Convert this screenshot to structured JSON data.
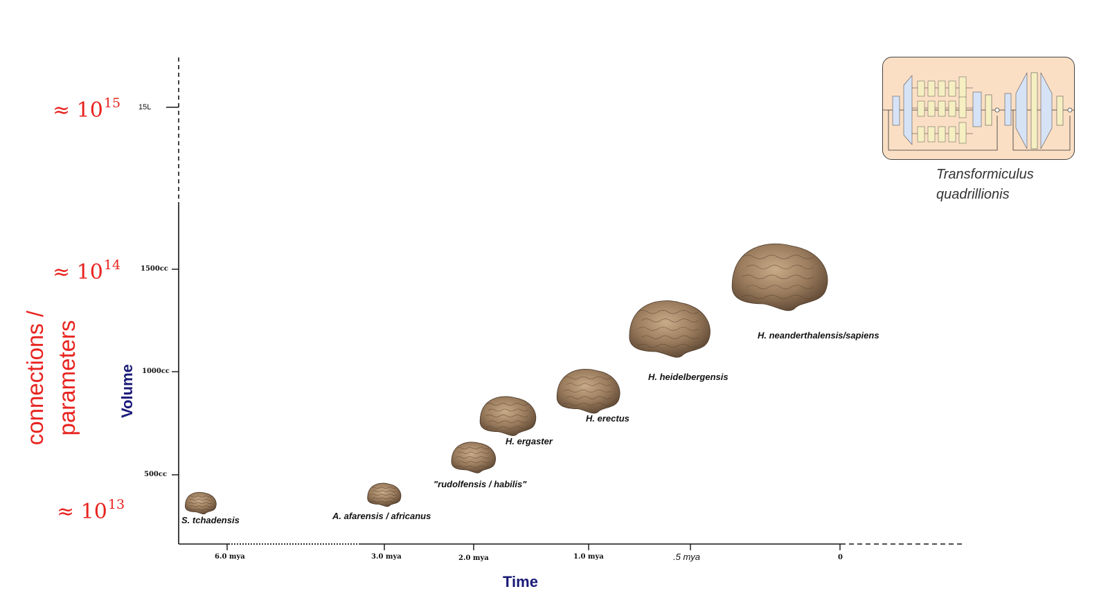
{
  "chart_data": {
    "type": "scatter",
    "title": "",
    "xlabel": "Time",
    "ylabel": "Volume",
    "x_ticks": [
      "6.0 mya",
      "3.0 mya",
      "2.0 mya",
      "1.0 mya",
      ".5 mya",
      "0"
    ],
    "y_ticks": [
      "500cc",
      "1000cc",
      "1500cc",
      "15L"
    ],
    "grid": false,
    "legend": "none",
    "points": [
      {
        "label": "S. tchadensis",
        "x_mya": 6.5,
        "volume_cc": 360
      },
      {
        "label": "A. afarensis / africanus",
        "x_mya": 3.0,
        "volume_cc": 400
      },
      {
        "label": "\"rudolfensis / habilis\"",
        "x_mya": 2.0,
        "volume_cc": 580
      },
      {
        "label": "H. ergaster",
        "x_mya": 1.7,
        "volume_cc": 780
      },
      {
        "label": "H. erectus",
        "x_mya": 1.0,
        "volume_cc": 900
      },
      {
        "label": "H. heidelbergensis",
        "x_mya": 0.6,
        "volume_cc": 1200
      },
      {
        "label": "H. neanderthalensis/sapiens",
        "x_mya": 0.2,
        "volume_cc": 1450
      }
    ],
    "secondary_axis": {
      "label": "connections / parameters",
      "ticks": [
        "≈ 10",
        "≈ 10",
        "≈ 10"
      ],
      "exponents": [
        "15",
        "14",
        "13"
      ]
    }
  },
  "labels": {
    "connections": "connections /",
    "parameters": "parameters",
    "transformer_caption_1": "Transformiculus",
    "transformer_caption_2": "quadrillionis"
  },
  "colors": {
    "accent_red": "#e8231f",
    "axis_label_navy": "#1a1a78",
    "brain_brown": "#9b7d5e",
    "transformer_bg": "#fbdfc4"
  }
}
